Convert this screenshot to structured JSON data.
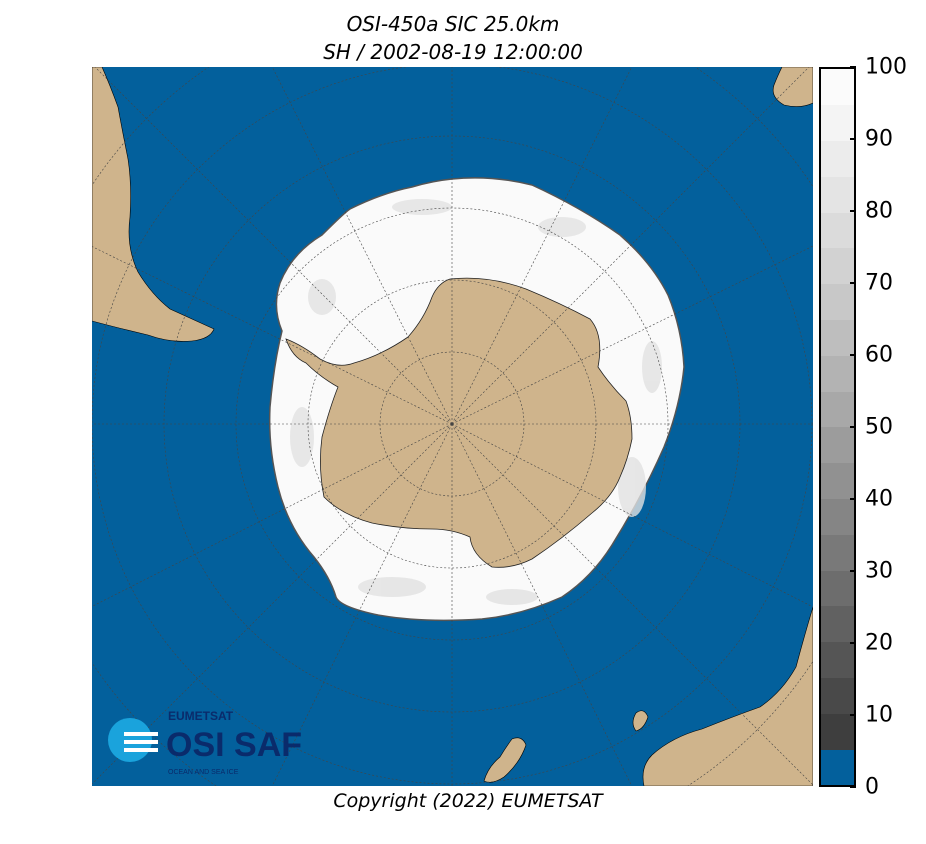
{
  "title": "OSI-450a SIC 25.0km",
  "subtitle": "SH / 2002-08-19 12:00:00",
  "copyright": "Copyright (2022)  EUMETSAT",
  "colorbar": {
    "ticks": [
      "100",
      "90",
      "80",
      "70",
      "60",
      "50",
      "40",
      "30",
      "20",
      "10",
      "0"
    ],
    "open_water_color": "#03609c",
    "ice_colors": [
      "#333333",
      "#3e3e3e",
      "#494949",
      "#555555",
      "#616161",
      "#6d6d6d",
      "#797979",
      "#858585",
      "#919191",
      "#9c9c9c",
      "#a8a8a8",
      "#b3b3b3",
      "#bebebe",
      "#c8c8c8",
      "#d2d2d2",
      "#dbdbdb",
      "#e4e4e4",
      "#ececec",
      "#f4f4f4",
      "#fbfbfb"
    ]
  },
  "colors": {
    "ocean": "#03609c",
    "land": "#cfb48c",
    "sea_ice": "#ffffff",
    "graticule": "#444444"
  },
  "logo": {
    "brand": "EUMETSAT",
    "product": "OSI SAF",
    "tagline": "OCEAN AND SEA ICE",
    "color": "#0a2b6b",
    "accent": "#1aa3dc"
  }
}
